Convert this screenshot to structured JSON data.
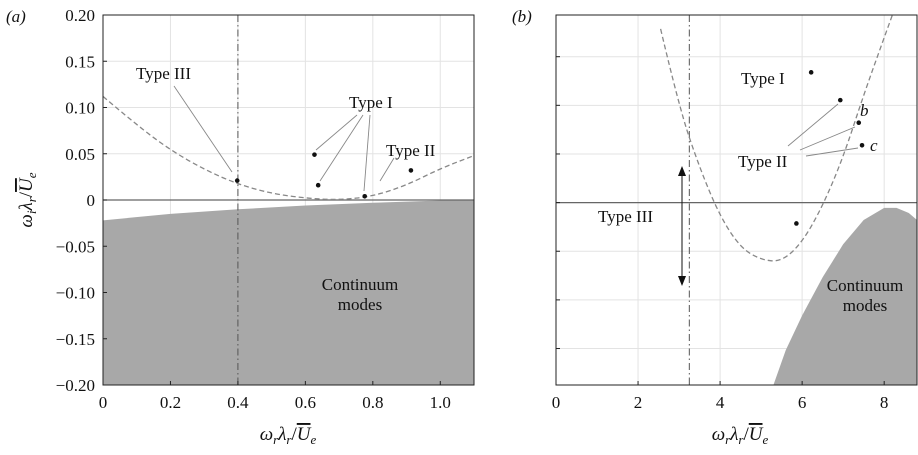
{
  "chart_data": [
    {
      "type": "scatter",
      "panel_label": "(a)",
      "xlabel": "ω_r λ_r / U̅_e",
      "ylabel": "ω_i λ_r / U̅_e",
      "xlim": [
        0,
        1.1
      ],
      "ylim": [
        -0.2,
        0.2
      ],
      "x_ticks": [
        "0",
        "0.2",
        "0.4",
        "0.6",
        "0.8",
        "1.0"
      ],
      "x_tick_values": [
        0,
        0.2,
        0.4,
        0.6,
        0.8,
        1.0
      ],
      "y_ticks": [
        "−0.20",
        "−0.15",
        "−0.10",
        "−0.05",
        "0",
        "0.05",
        "0.10",
        "0.15",
        "0.20"
      ],
      "y_tick_values": [
        -0.2,
        -0.15,
        -0.1,
        -0.05,
        0,
        0.05,
        0.1,
        0.15,
        0.2
      ],
      "grid": true,
      "points": [
        {
          "x": 0.398,
          "y": 0.021,
          "type": "Type III"
        },
        {
          "x": 0.627,
          "y": 0.049,
          "type": "Type I"
        },
        {
          "x": 0.638,
          "y": 0.016,
          "type": "Type I"
        },
        {
          "x": 0.776,
          "y": 0.004,
          "type": "Type I"
        },
        {
          "x": 0.913,
          "y": 0.032,
          "type": "Type II"
        }
      ],
      "dashed_curve": [
        [
          0,
          0.112
        ],
        [
          0.1,
          0.081
        ],
        [
          0.2,
          0.054
        ],
        [
          0.3,
          0.033
        ],
        [
          0.4,
          0.017
        ],
        [
          0.5,
          0.007
        ],
        [
          0.6,
          0.002
        ],
        [
          0.7,
          0.0
        ],
        [
          0.8,
          0.004
        ],
        [
          0.9,
          0.016
        ],
        [
          1.0,
          0.034
        ],
        [
          1.1,
          0.048
        ]
      ],
      "vertical_dashdot_x": 0.4,
      "horizontal_line_y": 0,
      "continuum_boundary": [
        [
          0,
          -0.022
        ],
        [
          0.2,
          -0.015
        ],
        [
          0.4,
          -0.01
        ],
        [
          0.6,
          -0.006
        ],
        [
          0.8,
          -0.003
        ],
        [
          1.0,
          -0.0005
        ],
        [
          1.1,
          0.0
        ]
      ],
      "annotations": {
        "type_i": "Type I",
        "type_ii": "Type II",
        "type_iii": "Type III",
        "continuum_line1": "Continuum",
        "continuum_line2": "modes"
      }
    },
    {
      "type": "scatter",
      "panel_label": "(b)",
      "xlabel": "ω_r λ_r / U̅_e",
      "xlim": [
        0,
        8.8
      ],
      "x_ticks": [
        "0",
        "2",
        "4",
        "6",
        "8"
      ],
      "x_tick_values": [
        0,
        2,
        4,
        6,
        8
      ],
      "grid": true,
      "points": [
        {
          "x": 6.22,
          "y": 0.75,
          "type": "Type I"
        },
        {
          "x": 6.93,
          "y": 0.59,
          "type": "Type II"
        },
        {
          "x": 7.38,
          "y": 0.46,
          "type": "Type II",
          "label": "b"
        },
        {
          "x": 7.46,
          "y": 0.33,
          "type": "Type II",
          "label": "c"
        },
        {
          "x": 5.86,
          "y": -0.12,
          "type": "Type III"
        }
      ],
      "dashed_curve": [
        [
          2.55,
          1.0
        ],
        [
          3.0,
          0.55
        ],
        [
          3.5,
          0.2
        ],
        [
          4.0,
          -0.08
        ],
        [
          4.5,
          -0.26
        ],
        [
          5.0,
          -0.33
        ],
        [
          5.5,
          -0.34
        ],
        [
          6.0,
          -0.23
        ],
        [
          6.5,
          -0.02
        ],
        [
          7.0,
          0.26
        ],
        [
          7.5,
          0.62
        ],
        [
          8.0,
          0.95
        ],
        [
          8.2,
          1.08
        ]
      ],
      "vertical_dashdot_x": 3.25,
      "horizontal_line_y": 0,
      "continuum_boundary": [
        [
          5.3,
          -1.05
        ],
        [
          5.6,
          -0.85
        ],
        [
          6.0,
          -0.65
        ],
        [
          6.5,
          -0.43
        ],
        [
          7.0,
          -0.24
        ],
        [
          7.5,
          -0.1
        ],
        [
          8.0,
          -0.03
        ],
        [
          8.3,
          -0.03
        ],
        [
          8.6,
          -0.06
        ],
        [
          8.8,
          -0.1
        ]
      ],
      "annotations": {
        "type_i": "Type I",
        "type_ii": "Type II",
        "type_iii": "Type III",
        "label_b": "b",
        "label_c": "c",
        "continuum_line1": "Continuum",
        "continuum_line2": "modes"
      }
    }
  ]
}
